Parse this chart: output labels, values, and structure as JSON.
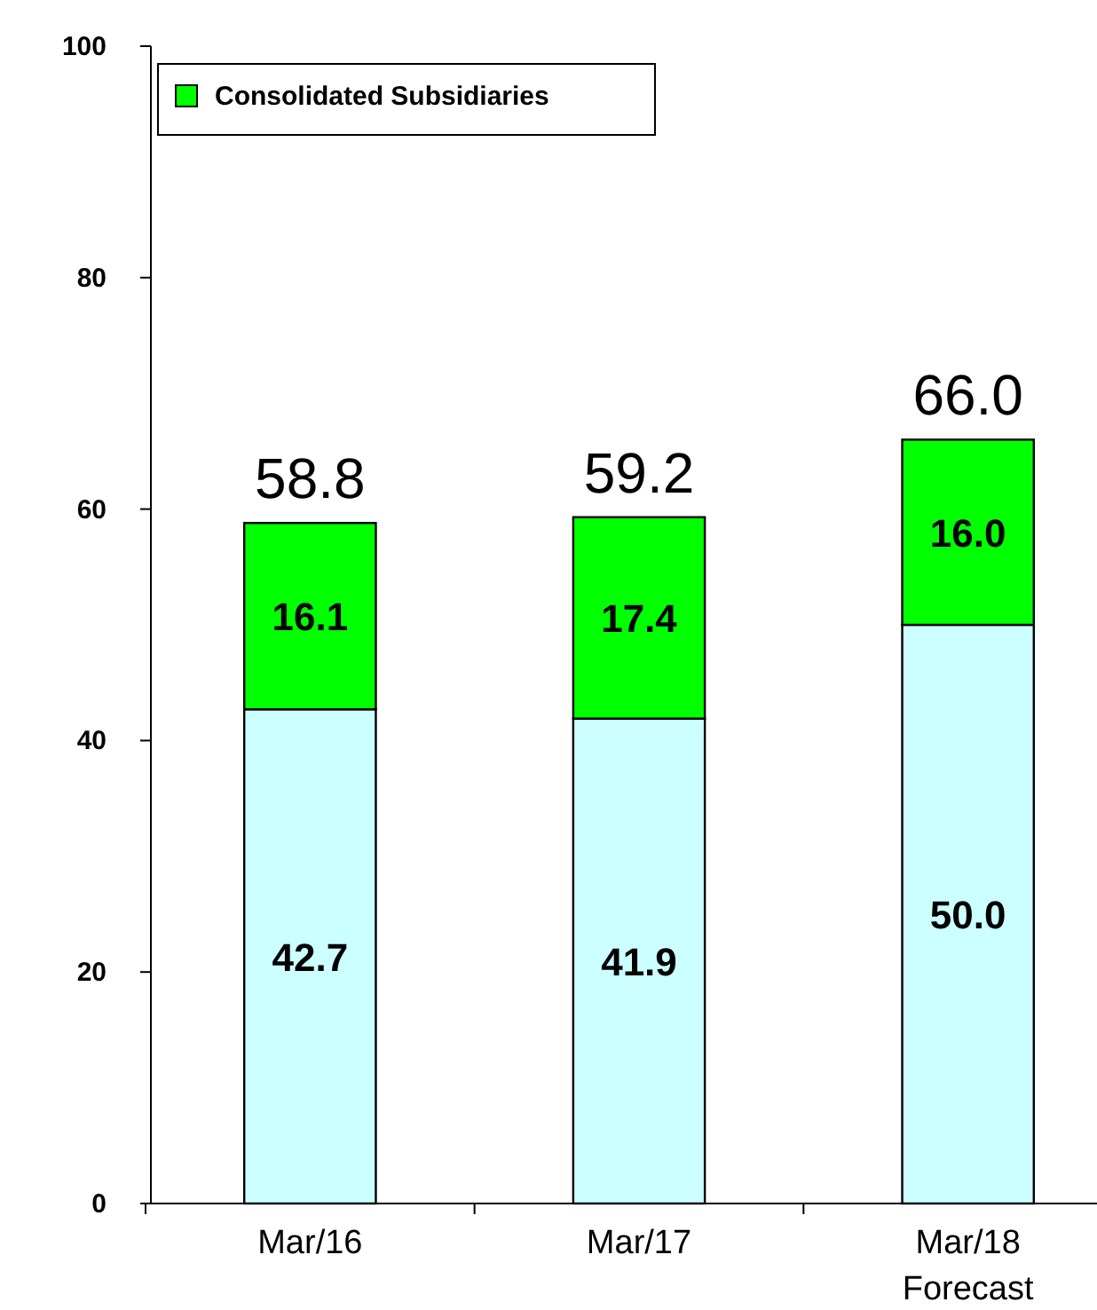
{
  "chart_data": {
    "type": "bar",
    "stacked": true,
    "categories": [
      "Mar/16",
      "Mar/17",
      "Mar/18 Forecast"
    ],
    "series": [
      {
        "color": "#ccffff",
        "values": [
          42.7,
          41.9,
          50.0
        ],
        "value_labels": [
          "42.7",
          "41.9",
          "50.0"
        ]
      },
      {
        "name": "Consolidated Subsidiaries",
        "color": "#00ff00",
        "values": [
          16.1,
          17.4,
          16.0
        ],
        "value_labels": [
          "16.1",
          "17.4",
          "16.0"
        ]
      }
    ],
    "ylim": [
      0,
      100
    ],
    "yticks": [
      0,
      20,
      40,
      60,
      80,
      100
    ],
    "totals": [
      "58.8",
      "59.2",
      "66.0"
    ],
    "legend": "top left",
    "grid": false
  }
}
